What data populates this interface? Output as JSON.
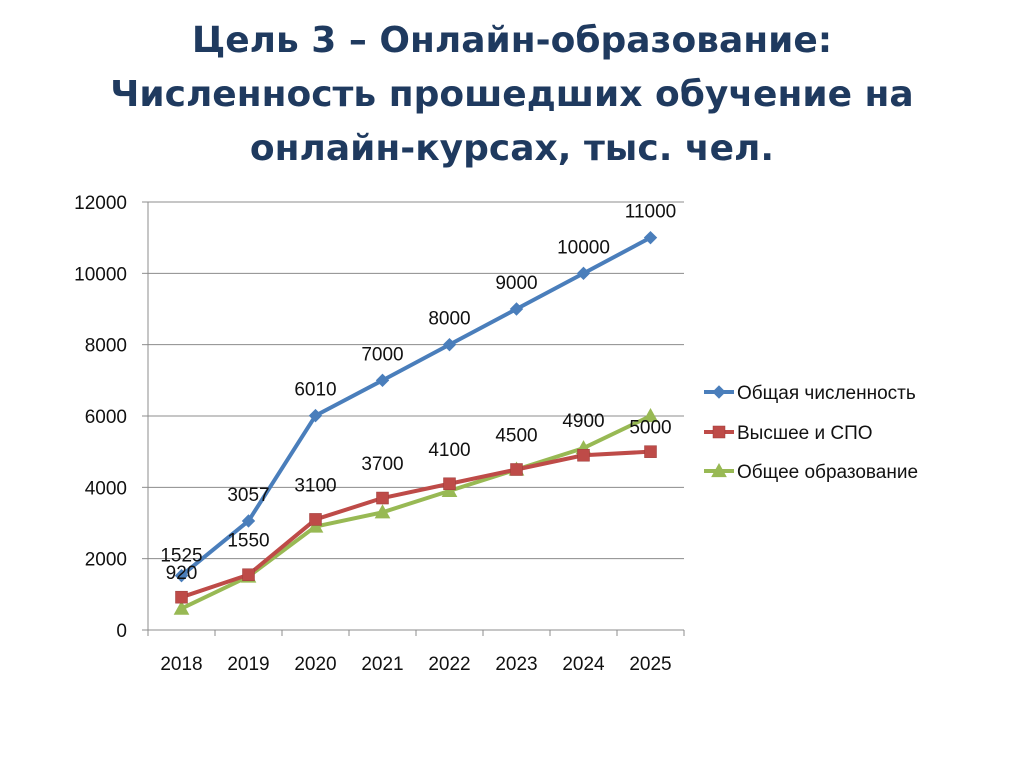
{
  "title": {
    "line1": "Цель 3 – Онлайн-образование:",
    "line2": "Численность прошедших обучение на",
    "line3": "онлайн-курсах, тыс. чел."
  },
  "chart_data": {
    "type": "line",
    "x": [
      "2018",
      "2019",
      "2020",
      "2021",
      "2022",
      "2023",
      "2024",
      "2025"
    ],
    "ylim": [
      0,
      12000
    ],
    "yticks": [
      0,
      2000,
      4000,
      6000,
      8000,
      10000,
      12000
    ],
    "grid": true,
    "legend_position": "right",
    "series": [
      {
        "name": "Общая численность",
        "color": "#4a7ebb",
        "marker": "diamond",
        "values": [
          1525,
          3057,
          6010,
          7000,
          8000,
          9000,
          10000,
          11000
        ],
        "labels": [
          "1525",
          "3057",
          "6010",
          "7000",
          "8000",
          "9000",
          "10000",
          "11000"
        ]
      },
      {
        "name": "Высшее и СПО",
        "color": "#be4b48",
        "marker": "square",
        "values": [
          920,
          1550,
          3100,
          3700,
          4100,
          4500,
          4900,
          5000
        ],
        "labels": [
          "920",
          "1550",
          "3100",
          "3700",
          "4100",
          "4500",
          "4900",
          "5000"
        ]
      },
      {
        "name": "Общее образование",
        "color": "#98b954",
        "marker": "triangle",
        "values": [
          600,
          1500,
          2900,
          3300,
          3900,
          4500,
          5100,
          6000
        ],
        "labels": []
      }
    ]
  }
}
